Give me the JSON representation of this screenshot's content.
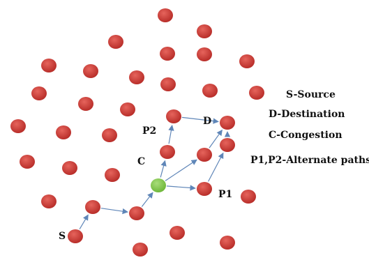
{
  "colors": {
    "node_fill": "#c0302b",
    "node_highlight": "#e6645c",
    "congestion_fill": "#7dc443",
    "congestion_highlight": "#a8dd7a",
    "arrow": "#5f86b8"
  },
  "labels": {
    "source": "S",
    "destination": "D",
    "congestion": "C",
    "path1": "P1",
    "path2": "P2"
  },
  "legend": [
    "S-Source",
    "D-Destination",
    "C-Congestion",
    "P1,P2-Alternate paths"
  ]
}
